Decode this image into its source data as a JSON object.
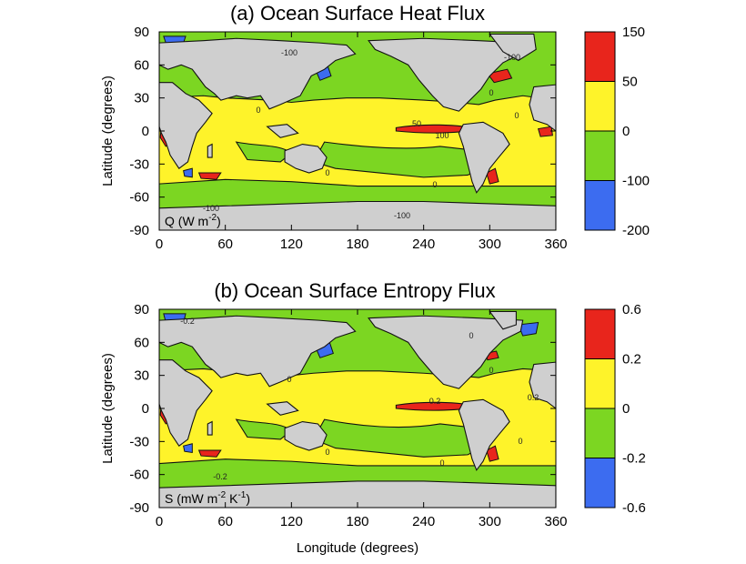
{
  "chart_data": [
    {
      "type": "heatmap",
      "title": "(a) Ocean Surface Heat Flux",
      "xlabel": "",
      "ylabel": "Latitude (degrees)",
      "xlim": [
        0,
        360
      ],
      "ylim": [
        -90,
        90
      ],
      "x_ticks": [
        "0",
        "60",
        "120",
        "180",
        "240",
        "300",
        "360"
      ],
      "y_ticks": [
        "90",
        "60",
        "30",
        "0",
        "-30",
        "-60",
        "-90"
      ],
      "unit_label": {
        "base": "Q (W m",
        "sup1": "-2",
        "tail": ")",
        "sup2": "",
        "tail2": ""
      },
      "colorbar": {
        "levels": [
          "150",
          "50",
          "0",
          "-100",
          "-200"
        ],
        "colors": [
          "#e8251c",
          "#fef32a",
          "#7cd622",
          "#3c6cf0"
        ]
      },
      "contour_labels": [
        "-100",
        "-100",
        "0",
        "0",
        "0",
        "50",
        "100",
        "0",
        "0",
        "-100",
        "-100"
      ],
      "features": {
        "land_color": "#cfcfcf",
        "equatorial_maximum_value": 100,
        "background_class": "0 to 50"
      }
    },
    {
      "type": "heatmap",
      "title": "(b) Ocean Surface Entropy Flux",
      "xlabel": "Longitude (degrees)",
      "ylabel": "Latitude (degrees)",
      "xlim": [
        0,
        360
      ],
      "ylim": [
        -90,
        90
      ],
      "x_ticks": [
        "0",
        "60",
        "120",
        "180",
        "240",
        "300",
        "360"
      ],
      "y_ticks": [
        "90",
        "60",
        "30",
        "0",
        "-30",
        "-60",
        "-90"
      ],
      "unit_label": {
        "base": "S (mW m",
        "sup1": "-2",
        "tail": " K",
        "sup2": "-1",
        "tail2": ")"
      },
      "colorbar": {
        "levels": [
          "0.6",
          "0.2",
          "0",
          "-0.2",
          "-0.6"
        ],
        "colors": [
          "#e8251c",
          "#fef32a",
          "#7cd622",
          "#3c6cf0"
        ]
      },
      "contour_labels": [
        "-0.2",
        "0",
        "0",
        "0",
        "0.2",
        "0.2",
        "0",
        "0",
        "0",
        "-0.2"
      ],
      "features": {
        "land_color": "#cfcfcf",
        "equatorial_maximum_value": 0.2,
        "background_class": "0 to 0.2"
      }
    }
  ],
  "colors": {
    "land": "#cfcfcf",
    "red": "#e8251c",
    "yellow": "#fef32a",
    "green": "#7cd622",
    "blue": "#3c6cf0"
  }
}
